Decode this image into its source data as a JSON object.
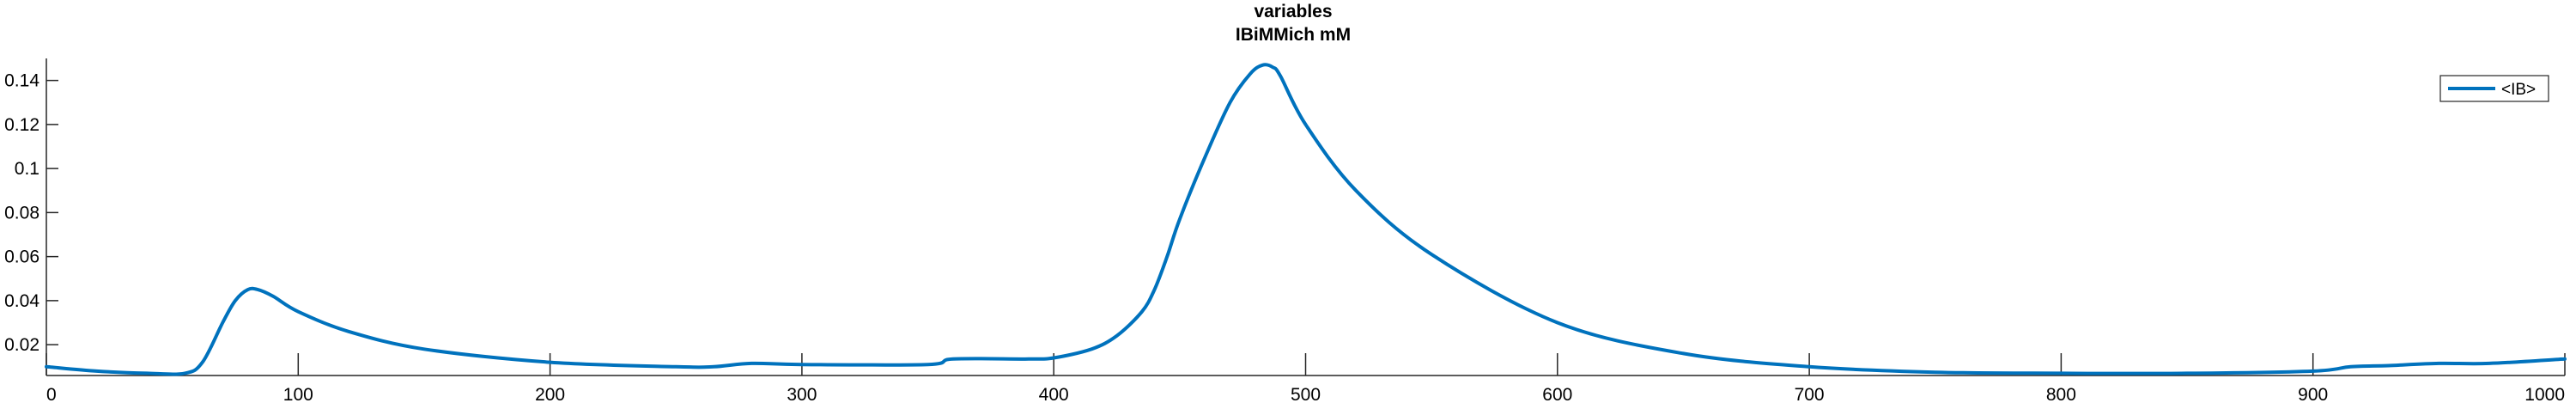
{
  "chart_data": {
    "type": "line",
    "title": "variables",
    "subtitle": "IBiMMich mM",
    "xlabel": "",
    "ylabel": "",
    "xlim": [
      0,
      1000
    ],
    "ylim": [
      0.006,
      0.15
    ],
    "x_ticks": [
      0,
      100,
      200,
      300,
      400,
      500,
      600,
      700,
      800,
      900,
      1000
    ],
    "x_tick_labels": [
      "0",
      "100",
      "200",
      "300",
      "400",
      "500",
      "600",
      "700",
      "800",
      "900",
      "1000"
    ],
    "y_ticks": [
      0.02,
      0.04,
      0.06,
      0.08,
      0.1,
      0.12,
      0.14
    ],
    "y_tick_labels": [
      "0.02",
      "0.04",
      "0.06",
      "0.08",
      "0.1",
      "0.12",
      "0.14"
    ],
    "grid": false,
    "legend_position": "top-right",
    "series": [
      {
        "name": "<IB>",
        "color": "#0072BD",
        "x": [
          0,
          20,
          40,
          55,
          62,
          70,
          75,
          80,
          84,
          90,
          100,
          120,
          150,
          200,
          250,
          265,
          280,
          300,
          350,
          360,
          390,
          400,
          415,
          425,
          435,
          440,
          445,
          450,
          460,
          470,
          478,
          483,
          487,
          490,
          500,
          520,
          550,
          600,
          650,
          700,
          750,
          800,
          850,
          900,
          915,
          930,
          950,
          970,
          1000
        ],
        "y": [
          0.01,
          0.008,
          0.007,
          0.007,
          0.012,
          0.03,
          0.04,
          0.045,
          0.045,
          0.042,
          0.035,
          0.026,
          0.018,
          0.012,
          0.01,
          0.01,
          0.0115,
          0.011,
          0.011,
          0.0135,
          0.0135,
          0.014,
          0.018,
          0.024,
          0.035,
          0.045,
          0.06,
          0.077,
          0.105,
          0.13,
          0.143,
          0.147,
          0.146,
          0.142,
          0.12,
          0.09,
          0.061,
          0.03,
          0.016,
          0.01,
          0.0075,
          0.007,
          0.007,
          0.008,
          0.01,
          0.0105,
          0.0115,
          0.0115,
          0.0135
        ]
      }
    ]
  }
}
